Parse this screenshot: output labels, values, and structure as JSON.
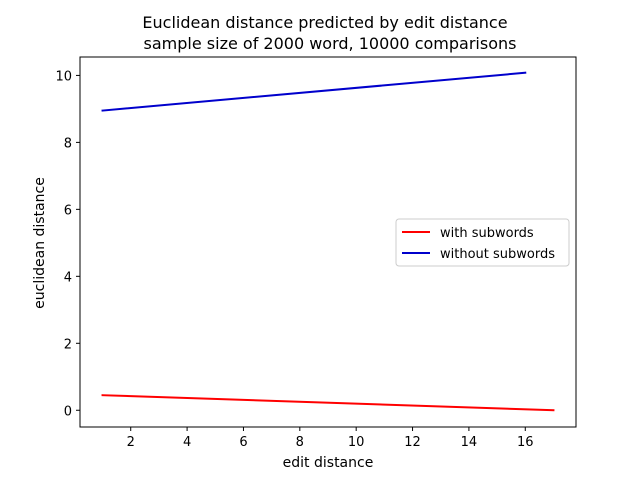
{
  "chart_data": {
    "type": "line",
    "title": "Euclidean distance predicted by edit distance\nsample size of 2000 word, 10000 comparisons",
    "xlabel": "edit distance",
    "ylabel": "euclidean distance",
    "xlim": [
      0.2,
      17.8
    ],
    "ylim": [
      -0.5,
      10.55
    ],
    "xticks": [
      2,
      4,
      6,
      8,
      10,
      12,
      14,
      16
    ],
    "yticks": [
      0,
      2,
      4,
      6,
      8,
      10
    ],
    "grid": false,
    "legend_position": "center-right",
    "series": [
      {
        "name": "with subwords",
        "color": "#ff0000",
        "x": [
          1,
          17
        ],
        "y": [
          0.45,
          0.0
        ]
      },
      {
        "name": "without subwords",
        "color": "#0000cc",
        "x": [
          1,
          16
        ],
        "y": [
          8.95,
          10.08
        ]
      }
    ]
  }
}
